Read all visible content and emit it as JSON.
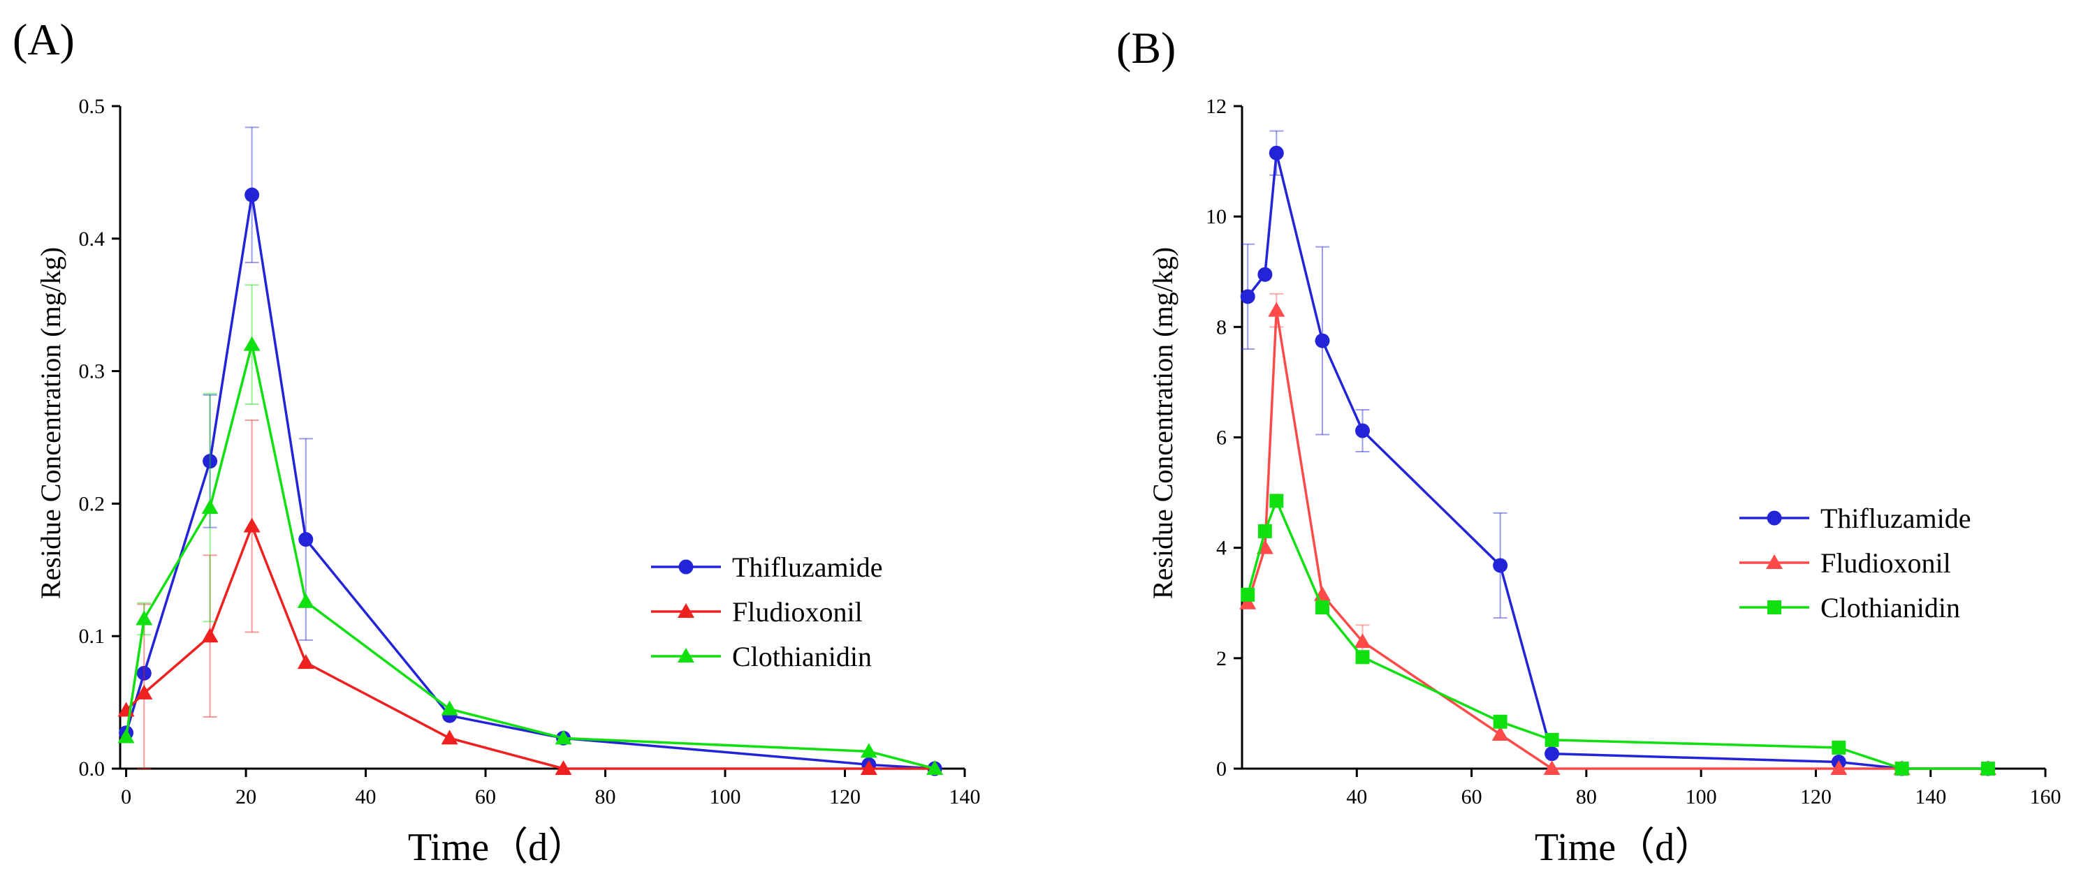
{
  "chart_data": [
    {
      "type": "line",
      "panel_label": "(A)",
      "xlabel": "Time（d）",
      "ylabel": "Residue Concentration (mg/kg)",
      "xlim": [
        -1,
        140
      ],
      "ylim": [
        0,
        0.5
      ],
      "xticks": [
        0,
        20,
        40,
        60,
        80,
        100,
        120,
        140
      ],
      "xtick_labels": [
        "0",
        "20",
        "40",
        "60",
        "80",
        "100",
        "120",
        "140"
      ],
      "yticks": [
        0,
        0.1,
        0.2,
        0.3,
        0.4,
        0.5
      ],
      "ytick_labels": [
        "0.0",
        "0.1",
        "0.2",
        "0.3",
        "0.4",
        "0.5"
      ],
      "legend_position": "center-right",
      "series": [
        {
          "name": "Thifluzamide",
          "color": "#2323d8",
          "marker": "circle",
          "x": [
            0,
            3,
            14,
            21,
            30,
            54,
            73,
            124,
            135
          ],
          "y": [
            0.027,
            0.072,
            0.232,
            0.433,
            0.173,
            0.04,
            0.023,
            0.003,
            0.0
          ],
          "err": [
            0.0,
            0.0,
            0.05,
            0.051,
            0.076,
            0.0,
            0.0,
            0.0,
            0.0
          ]
        },
        {
          "name": "Fludioxonil",
          "color": "#ee2020",
          "marker": "triangle",
          "x": [
            0,
            3,
            14,
            21,
            30,
            54,
            73,
            124,
            135
          ],
          "y": [
            0.044,
            0.057,
            0.1,
            0.183,
            0.08,
            0.023,
            0.0,
            0.0,
            0.0
          ],
          "err": [
            0.0,
            0.067,
            0.061,
            0.08,
            0.0,
            0.0,
            0.0,
            0.0,
            0.0
          ]
        },
        {
          "name": "Clothianidin",
          "color": "#10e010",
          "marker": "triangle",
          "x": [
            0,
            3,
            14,
            21,
            30,
            54,
            73,
            124,
            135
          ],
          "y": [
            0.024,
            0.113,
            0.197,
            0.32,
            0.126,
            0.045,
            0.023,
            0.013,
            0.0
          ],
          "err": [
            0.0,
            0.012,
            0.086,
            0.045,
            0.0,
            0.0,
            0.0,
            0.0,
            0.0
          ]
        }
      ]
    },
    {
      "type": "line",
      "panel_label": "(B)",
      "xlabel": "Time（d）",
      "ylabel": "Residue Concentration (mg/kg)",
      "xlim": [
        20,
        160
      ],
      "ylim": [
        0,
        12
      ],
      "xticks": [
        40,
        60,
        80,
        100,
        120,
        140,
        160
      ],
      "xtick_labels": [
        "40",
        "60",
        "80",
        "100",
        "120",
        "140",
        "160"
      ],
      "yticks": [
        0,
        2,
        4,
        6,
        8,
        10,
        12
      ],
      "ytick_labels": [
        "0",
        "2",
        "4",
        "6",
        "8",
        "10",
        "12"
      ],
      "legend_position": "center-right",
      "series": [
        {
          "name": "Thifluzamide",
          "color": "#2323d8",
          "marker": "circle",
          "x": [
            21,
            24,
            26,
            34,
            41,
            65,
            74,
            124,
            135,
            150
          ],
          "y": [
            8.55,
            8.95,
            11.15,
            7.75,
            6.12,
            3.68,
            0.27,
            0.12,
            0.0,
            0.0
          ],
          "err": [
            0.95,
            0.0,
            0.4,
            1.7,
            0.38,
            0.95,
            0.0,
            0.0,
            0.0,
            0.0
          ]
        },
        {
          "name": "Fludioxonil",
          "color": "#ff4a4a",
          "marker": "triangle",
          "x": [
            21,
            24,
            26,
            34,
            41,
            65,
            74,
            124,
            135,
            150
          ],
          "y": [
            3.0,
            4.0,
            8.3,
            3.15,
            2.3,
            0.62,
            0.0,
            0.0,
            0.0,
            0.0
          ],
          "err": [
            0.0,
            0.0,
            0.3,
            0.0,
            0.3,
            0.0,
            0.0,
            0.0,
            0.0,
            0.0
          ]
        },
        {
          "name": "Clothianidin",
          "color": "#10e010",
          "marker": "square",
          "x": [
            21,
            24,
            26,
            34,
            41,
            65,
            74,
            124,
            135,
            150
          ],
          "y": [
            3.15,
            4.3,
            4.85,
            2.92,
            2.02,
            0.85,
            0.52,
            0.38,
            0.0,
            0.0
          ],
          "err": [
            0.0,
            0.0,
            0.0,
            0.0,
            0.0,
            0.0,
            0.0,
            0.0,
            0.0,
            0.0
          ]
        }
      ]
    }
  ]
}
